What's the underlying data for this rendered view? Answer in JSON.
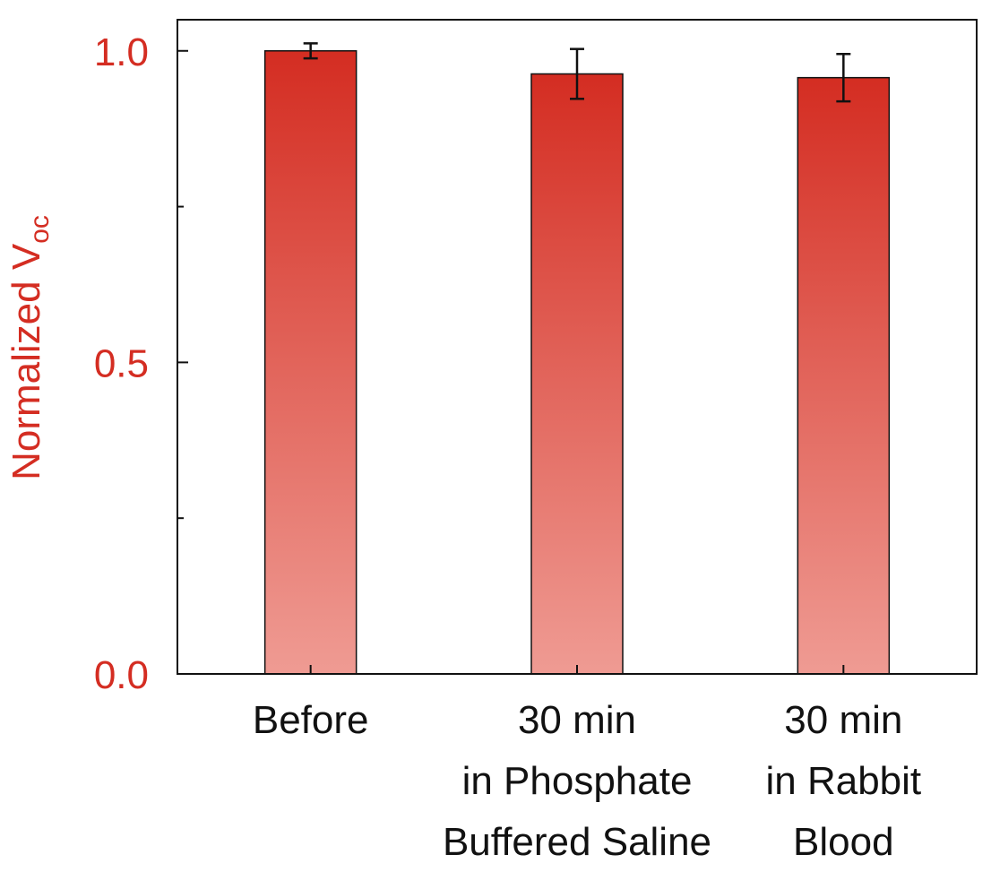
{
  "chart_data": {
    "type": "bar",
    "categories": [
      [
        "Before"
      ],
      [
        "30 min",
        "in Phosphate",
        "Buffered Saline"
      ],
      [
        "30 min",
        "in Rabbit",
        "Blood"
      ]
    ],
    "values": [
      1.0,
      0.963,
      0.957
    ],
    "errors": [
      0.012,
      0.04,
      0.038
    ],
    "ylabel": "Normalized V",
    "ylabel_sub": "oc",
    "ylim": [
      0,
      1.05
    ],
    "yticks": [
      0.0,
      0.5,
      1.0
    ],
    "ytick_labels": [
      "0.0",
      "0.5",
      "1.0"
    ],
    "grid": false,
    "colors": {
      "accent": "#d42d22",
      "bar_top": "#d42d22",
      "bar_bottom": "#ef9b93",
      "axis": "#111111"
    }
  }
}
